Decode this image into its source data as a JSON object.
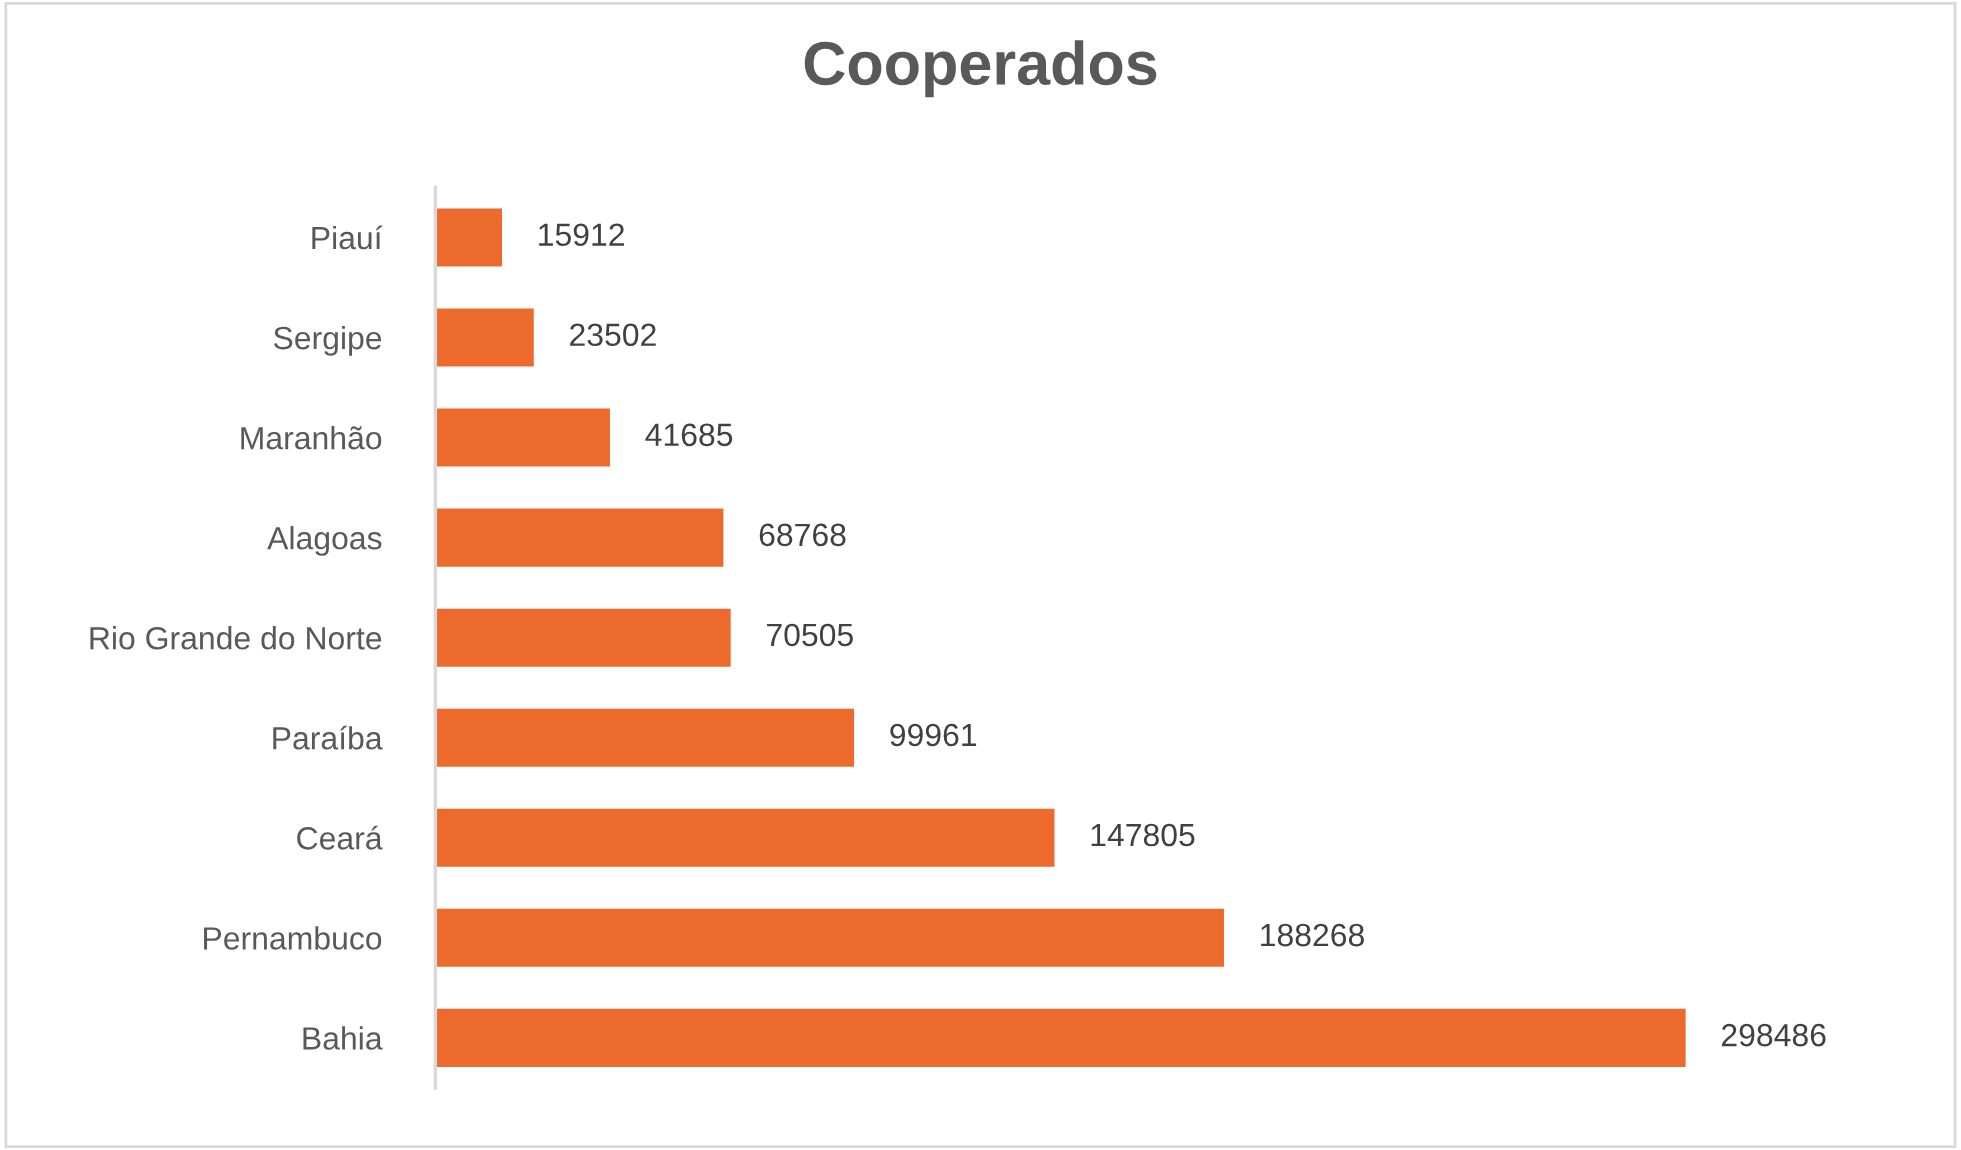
{
  "chart_data": {
    "type": "bar",
    "orientation": "horizontal",
    "title": "Cooperados",
    "categories": [
      "Piauí",
      "Sergipe",
      "Maranhão",
      "Alagoas",
      "Rio Grande do Norte",
      "Paraíba",
      "Ceará",
      "Pernambuco",
      "Bahia"
    ],
    "values": [
      15912,
      23502,
      41685,
      68768,
      70505,
      99961,
      147805,
      188268,
      298486
    ],
    "color": "#ec6a2b",
    "data_labels": true,
    "grid": false,
    "legend": false
  }
}
